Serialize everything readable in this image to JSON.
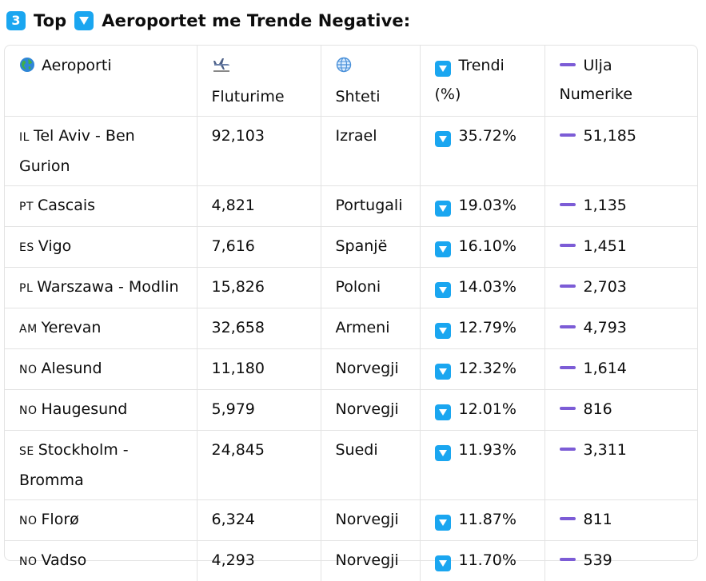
{
  "heading": {
    "number_badge": "3",
    "word_top": "Top",
    "title": "Aeroportet me Trende Negative:"
  },
  "table": {
    "headers": {
      "airport": "Aeroporti",
      "flights": "Fluturime",
      "country": "Shteti",
      "trend_line1": "Trendi",
      "trend_line2": "(%)",
      "decline_line1": "Ulja",
      "decline_line2": "Numerike"
    },
    "rows": [
      {
        "flag": "IL",
        "airport": "Tel Aviv - Ben Gurion",
        "flights": "92,103",
        "country": "Izrael",
        "trend": "35.72%",
        "decline": "51,185"
      },
      {
        "flag": "PT",
        "airport": "Cascais",
        "flights": "4,821",
        "country": "Portugali",
        "trend": "19.03%",
        "decline": "1,135"
      },
      {
        "flag": "ES",
        "airport": "Vigo",
        "flights": "7,616",
        "country": "Spanjë",
        "trend": "16.10%",
        "decline": "1,451"
      },
      {
        "flag": "PL",
        "airport": "Warszawa - Modlin",
        "flights": "15,826",
        "country": "Poloni",
        "trend": "14.03%",
        "decline": "2,703"
      },
      {
        "flag": "AM",
        "airport": "Yerevan",
        "flights": "32,658",
        "country": "Armeni",
        "trend": "12.79%",
        "decline": "4,793"
      },
      {
        "flag": "NO",
        "airport": "Alesund",
        "flights": "11,180",
        "country": "Norvegji",
        "trend": "12.32%",
        "decline": "1,614"
      },
      {
        "flag": "NO",
        "airport": "Haugesund",
        "flights": "5,979",
        "country": "Norvegji",
        "trend": "12.01%",
        "decline": "816"
      },
      {
        "flag": "SE",
        "airport": "Stockholm - Bromma",
        "flights": "24,845",
        "country": "Suedi",
        "trend": "11.93%",
        "decline": "3,311"
      },
      {
        "flag": "NO",
        "airport": "Florø",
        "flights": "6,324",
        "country": "Norvegji",
        "trend": "11.87%",
        "decline": "811"
      },
      {
        "flag": "NO",
        "airport": "Vadso",
        "flights": "4,293",
        "country": "Norvegji",
        "trend": "11.70%",
        "decline": "539"
      }
    ]
  },
  "icons": {
    "badge_color": "#1aa6f0",
    "minus_color": "#7c5cd6",
    "airport_header_icon": "globe-icon",
    "flights_header_icon": "airplane-icon",
    "country_header_icon": "globe-with-meridians-icon",
    "trend_icon": "down-triangle-button-icon",
    "decline_icon": "heavy-minus-icon"
  }
}
